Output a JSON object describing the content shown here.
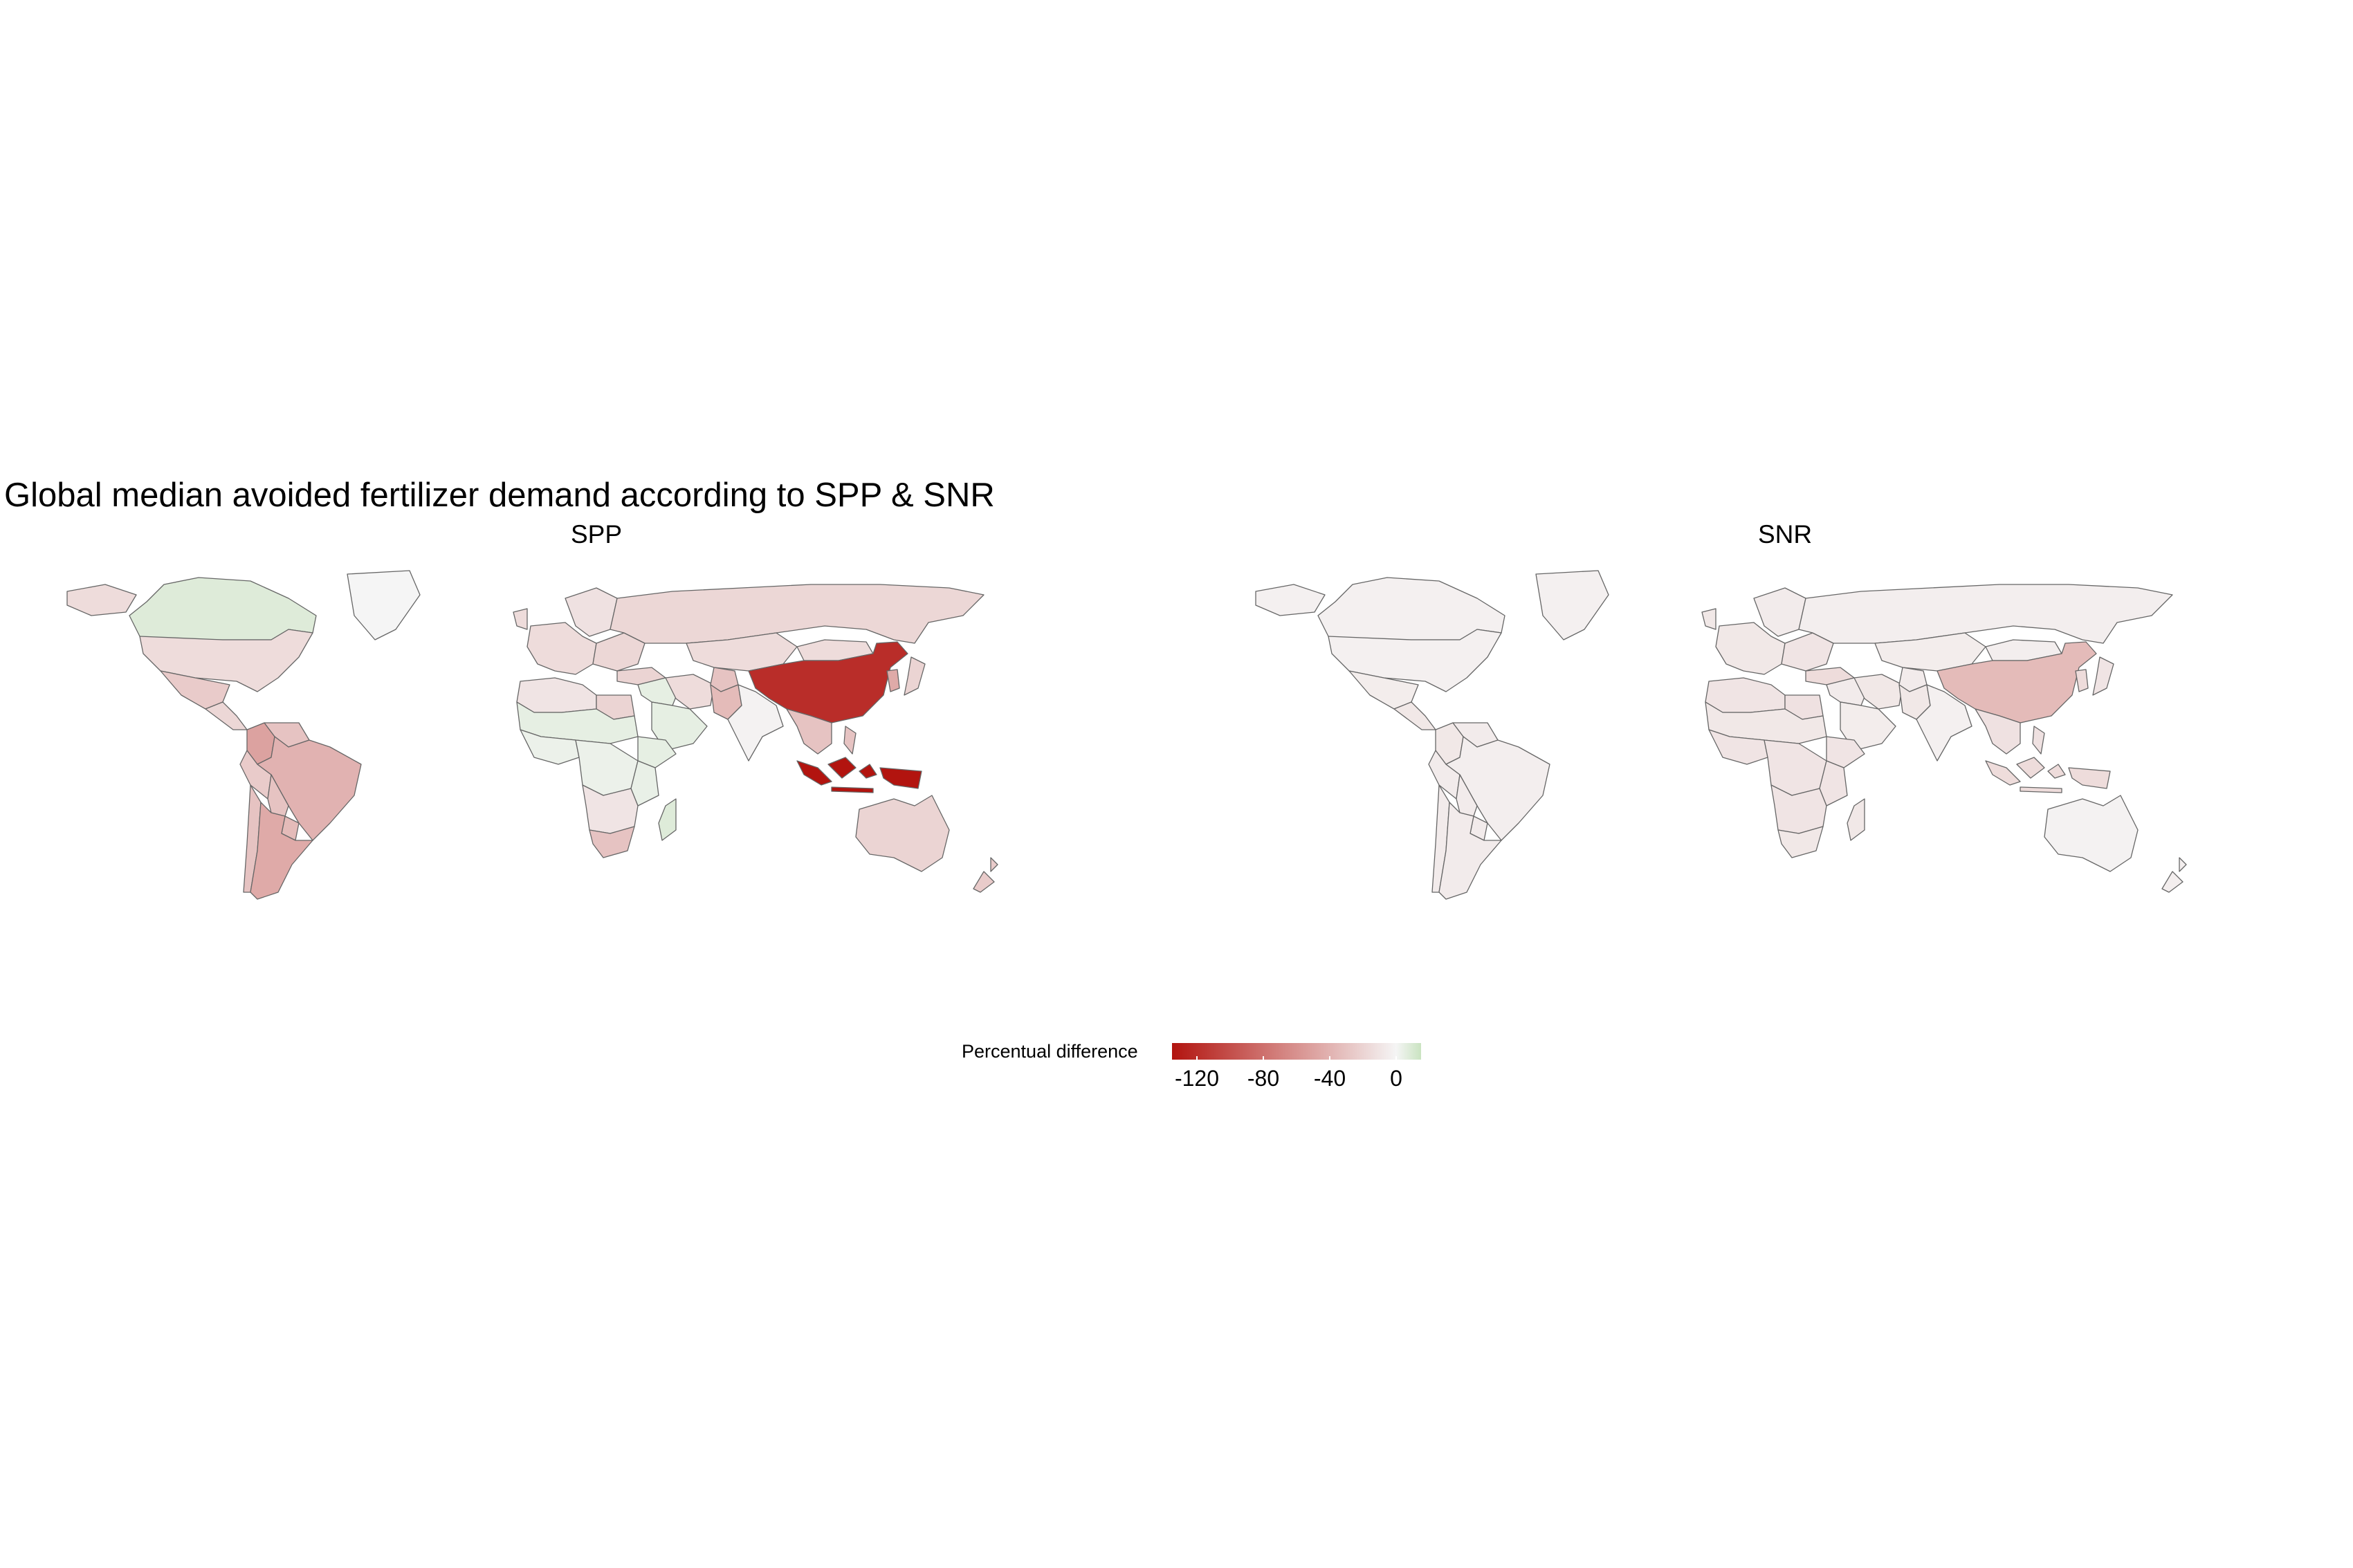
{
  "title": "Global median avoided fertilizer demand according to SPP & SNR",
  "panels": [
    {
      "label": "SPP"
    },
    {
      "label": "SNR"
    }
  ],
  "legend": {
    "title": "Percentual difference",
    "ticks": [
      "-120",
      "-80",
      "-40",
      "0"
    ],
    "range": [
      -135,
      15
    ],
    "colors": {
      "low": "#b2140f",
      "mid": "#f5f5f5",
      "high": "#c9e3c0"
    }
  },
  "map_data": {
    "SPP": {
      "Canada": 8,
      "Greenland": 0,
      "USA": -15,
      "Mexico": -25,
      "Central America": -18,
      "Colombia": -50,
      "Venezuela": -30,
      "Brazil": -40,
      "Peru": -25,
      "Bolivia": -30,
      "Paraguay": -35,
      "Argentina": -45,
      "Chile": -30,
      "Europe West": -15,
      "Europe East": -18,
      "Scandinavia": -12,
      "Russia": -18,
      "Central Asia": -15,
      "Turkey": -20,
      "Middle East": 5,
      "Arabia": 5,
      "Iran": -15,
      "Afghanistan": -30,
      "Pakistan": -35,
      "India": -2,
      "China": -120,
      "Mongolia": -15,
      "Korea": -45,
      "Japan": -20,
      "Southeast Asia": -30,
      "Indonesia": -135,
      "Australia": -20,
      "New Zealand": -25,
      "North Africa West": -10,
      "Egypt": -20,
      "Sahel": 5,
      "West Africa": 3,
      "Ethiopia": 5,
      "Central Africa": 3,
      "East Africa": 4,
      "Southern Africa": -10,
      "South Africa": -30,
      "Madagascar": 8
    },
    "SNR": {
      "Canada": -3,
      "Greenland": -3,
      "USA": -3,
      "Mexico": -5,
      "Central America": -8,
      "Colombia": -8,
      "Venezuela": -6,
      "Brazil": -4,
      "Peru": -6,
      "Bolivia": -6,
      "Paraguay": -6,
      "Argentina": -6,
      "Chile": -6,
      "Europe West": -8,
      "Europe East": -10,
      "Scandinavia": -6,
      "Russia": -4,
      "Central Asia": -5,
      "Turkey": -15,
      "Middle East": -6,
      "Arabia": -5,
      "Iran": -8,
      "Afghanistan": -6,
      "Pakistan": -8,
      "India": -3,
      "China": -35,
      "Mongolia": -4,
      "Korea": -15,
      "Japan": -10,
      "Southeast Asia": -12,
      "Indonesia": -15,
      "Australia": -2,
      "New Zealand": -4,
      "North Africa West": -10,
      "Egypt": -12,
      "Sahel": -8,
      "West Africa": -10,
      "Ethiopia": -10,
      "Central Africa": -10,
      "East Africa": -10,
      "Southern Africa": -10,
      "South Africa": -8,
      "Madagascar": -8
    }
  }
}
